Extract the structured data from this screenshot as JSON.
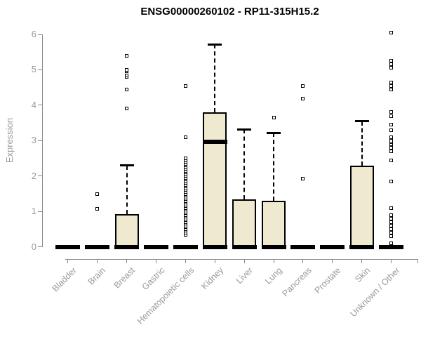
{
  "title": "ENSG00000260102 - RP11-315H15.2",
  "chart_data": {
    "type": "boxplot",
    "title": "ENSG00000260102 - RP11-315H15.2",
    "xlabel": "",
    "ylabel": "Expression",
    "ylim": [
      0,
      6
    ],
    "yticks": [
      0,
      1,
      2,
      3,
      4,
      5,
      6
    ],
    "grid": false,
    "legend": false,
    "categories": [
      "Bladder",
      "Brain",
      "Breast",
      "Gastric",
      "Hematopoietic cells",
      "Kidney",
      "Liver",
      "Lung",
      "Pancreas",
      "Prostate",
      "Skin",
      "Unknown / Other"
    ],
    "series": [
      {
        "name": "Bladder",
        "q1": 0,
        "median": 0,
        "q3": 0,
        "whisker_low": 0,
        "whisker_high": 0,
        "outliers": []
      },
      {
        "name": "Brain",
        "q1": 0,
        "median": 0,
        "q3": 0,
        "whisker_low": 0,
        "whisker_high": 0,
        "outliers": [
          1.07,
          1.5
        ]
      },
      {
        "name": "Breast",
        "q1": 0,
        "median": 0,
        "q3": 0.93,
        "whisker_low": 0,
        "whisker_high": 2.3,
        "outliers": [
          3.9,
          4.45,
          4.8,
          4.85,
          4.95,
          5.0,
          5.4
        ]
      },
      {
        "name": "Gastric",
        "q1": 0,
        "median": 0,
        "q3": 0,
        "whisker_low": 0,
        "whisker_high": 0,
        "outliers": []
      },
      {
        "name": "Hematopoietic cells",
        "q1": 0,
        "median": 0,
        "q3": 0,
        "whisker_low": 0,
        "whisker_high": 0,
        "outliers": [
          0.35,
          0.4,
          0.45,
          0.5,
          0.55,
          0.6,
          0.65,
          0.7,
          0.75,
          0.8,
          0.85,
          0.9,
          0.95,
          1.0,
          1.05,
          1.1,
          1.15,
          1.2,
          1.25,
          1.3,
          1.35,
          1.4,
          1.45,
          1.5,
          1.55,
          1.6,
          1.65,
          1.7,
          1.75,
          1.8,
          1.85,
          1.9,
          1.95,
          2.0,
          2.05,
          2.1,
          2.15,
          2.2,
          2.25,
          2.3,
          2.35,
          2.4,
          2.45,
          2.5,
          3.1,
          4.55
        ]
      },
      {
        "name": "Kidney",
        "q1": 0,
        "median": 2.97,
        "q3": 3.8,
        "whisker_low": 0,
        "whisker_high": 5.72,
        "outliers": []
      },
      {
        "name": "Liver",
        "q1": 0,
        "median": 0,
        "q3": 1.35,
        "whisker_low": 0,
        "whisker_high": 3.32,
        "outliers": []
      },
      {
        "name": "Lung",
        "q1": 0,
        "median": 0,
        "q3": 1.3,
        "whisker_low": 0,
        "whisker_high": 3.22,
        "outliers": [
          3.65
        ]
      },
      {
        "name": "Pancreas",
        "q1": 0,
        "median": 0,
        "q3": 0,
        "whisker_low": 0,
        "whisker_high": 0,
        "outliers": [
          1.92,
          4.18,
          4.55
        ]
      },
      {
        "name": "Prostate",
        "q1": 0,
        "median": 0,
        "q3": 0,
        "whisker_low": 0,
        "whisker_high": 0,
        "outliers": []
      },
      {
        "name": "Skin",
        "q1": 0,
        "median": 0,
        "q3": 2.3,
        "whisker_low": 0,
        "whisker_high": 3.55,
        "outliers": []
      },
      {
        "name": "Unknown / Other",
        "q1": 0,
        "median": 0,
        "q3": 0,
        "whisker_low": 0,
        "whisker_high": 0,
        "outliers": [
          0.1,
          0.3,
          0.4,
          0.5,
          0.6,
          0.7,
          0.8,
          0.9,
          1.1,
          1.85,
          2.45,
          2.7,
          2.8,
          2.9,
          2.95,
          3.0,
          3.1,
          3.3,
          3.45,
          3.7,
          3.8,
          4.45,
          4.55,
          4.65,
          5.05,
          5.15,
          5.25,
          6.05
        ]
      }
    ],
    "colors": {
      "box_fill": "#EFE9D0",
      "box_border": "#000000",
      "median": "#000000",
      "whisker": "#000000",
      "outlier_fill": "#FFFFFF",
      "axis": "#898989",
      "tick_text": "#9a9a9a",
      "title_text": "#000000",
      "background": "#FFFFFF"
    }
  }
}
